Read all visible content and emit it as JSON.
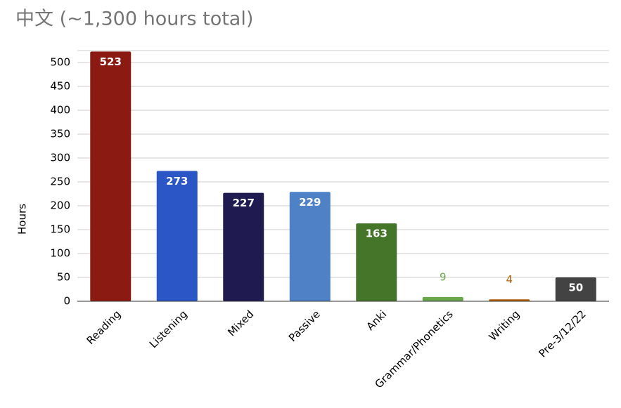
{
  "chart_data": {
    "type": "bar",
    "title": "中文 (~1,300 hours total)",
    "y_label": "Hours",
    "categories": [
      "Reading",
      "Listening",
      "Mixed",
      "Passive",
      "Anki",
      "Grammar/Phonetics",
      "Writing",
      "Pre-3/12/22"
    ],
    "values": [
      523,
      273,
      227,
      229,
      163,
      9,
      4,
      50
    ],
    "colors": [
      "#8b1a12",
      "#2a56c6",
      "#1f1a4f",
      "#4f81c7",
      "#457529",
      "#6aa84f",
      "#b45f06",
      "#434343"
    ],
    "ylim": [
      0,
      525
    ],
    "yticks": [
      0,
      50,
      100,
      150,
      200,
      250,
      300,
      350,
      400,
      450,
      500
    ],
    "grid": true
  }
}
